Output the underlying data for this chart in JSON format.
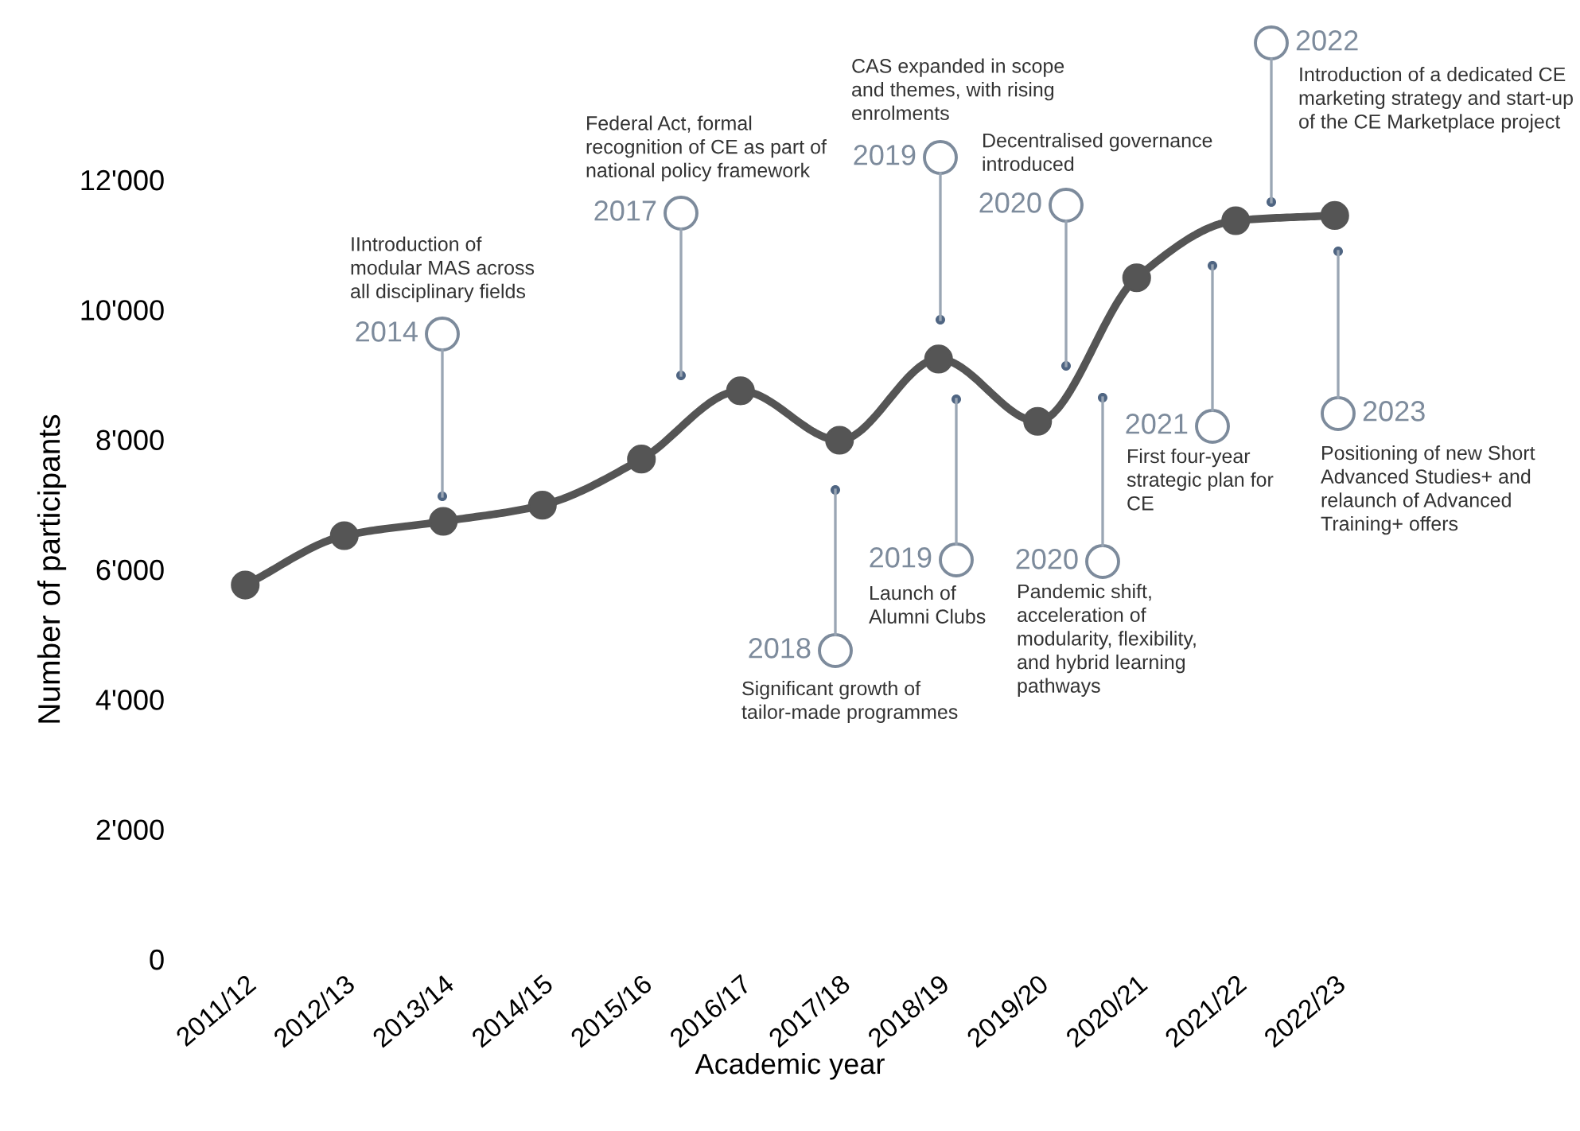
{
  "chart_data": {
    "type": "line",
    "xlabel": "Academic year",
    "ylabel": "Number of participants",
    "categories": [
      "2011/12",
      "2012/13",
      "2013/14",
      "2014/15",
      "2015/16",
      "2016/17",
      "2017/18",
      "2018/19",
      "2019/20",
      "2020/21",
      "2021/22",
      "2022/23"
    ],
    "series": [
      {
        "color": "#555555",
        "values": [
          5760,
          6520,
          6740,
          6990,
          7700,
          8750,
          7990,
          9240,
          8280,
          10490,
          11370,
          11450
        ]
      }
    ],
    "ylim": [
      0,
      12000
    ],
    "yticks": [
      0,
      {
        "value": 2000,
        "label": "2'000"
      },
      {
        "value": 4000,
        "label": "4'000"
      },
      {
        "value": 6000,
        "label": "6'000"
      },
      {
        "value": 8000,
        "label": "8'000"
      },
      {
        "value": 10000,
        "label": "10'000"
      },
      {
        "value": 12000,
        "label": "12'000"
      }
    ],
    "marker": "circle",
    "line_style": "solid",
    "annotations": [
      "2014",
      "IIntroduction of\nmodular MAS across\nall disciplinary fields",
      "2017",
      "Federal Act, formal\nrecognition of CE as part of\nnational policy framework",
      "2018",
      "Significant growth of\ntailor-made programmes",
      "2019",
      "CAS expanded in scope\nand themes, with rising\nenrolments",
      "2019",
      "Launch of\nAlumni Clubs",
      "2020",
      "Decentralised governance\nintroduced",
      "2020",
      "Pandemic shift,\nacceleration of\nmodularity, flexibility,\nand hybrid learning\npathways",
      "2021",
      "First four-year\nstrategic plan for\nCE",
      "2022",
      "Introduction of a dedicated CE\nmarketing strategy and start-up\nof the CE Marketplace project",
      "2023",
      "Positioning of new Short\nAdvanced Studies+ and\nrelaunch of Advanced\nTraining+ offers"
    ]
  }
}
